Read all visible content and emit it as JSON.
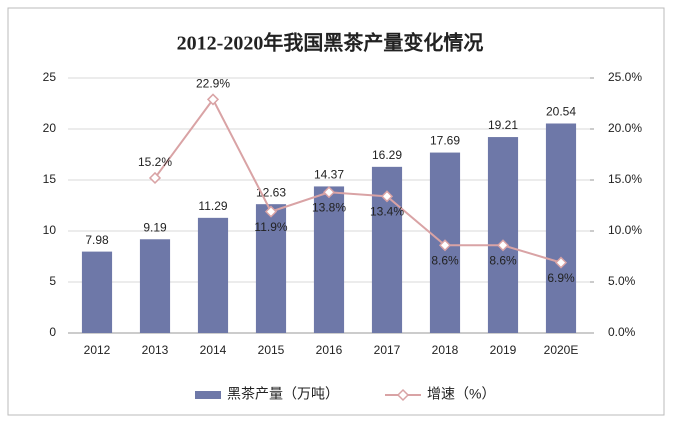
{
  "chart_data": {
    "type": "bar",
    "title": "2012-2020年我国黑茶产量变化情况",
    "categories": [
      "2012",
      "2013",
      "2014",
      "2015",
      "2016",
      "2017",
      "2018",
      "2019",
      "2020E"
    ],
    "series": [
      {
        "name": "黑茶产量（万吨）",
        "type": "bar",
        "color": "#6e78a8",
        "values": [
          7.98,
          9.19,
          11.29,
          12.63,
          14.37,
          16.29,
          17.69,
          19.21,
          20.54
        ]
      },
      {
        "name": "增速（%）",
        "type": "line",
        "axis": "y2",
        "color": "#d9a3a5",
        "values": [
          null,
          15.2,
          22.9,
          11.9,
          13.8,
          13.4,
          8.6,
          8.6,
          6.9
        ],
        "value_labels": [
          null,
          "15.2%",
          "22.9%",
          "11.9%",
          "13.8%",
          "13.4%",
          "8.6%",
          "8.6%",
          "6.9%"
        ]
      }
    ],
    "ylim": [
      0,
      25
    ],
    "yticks": [
      0,
      5,
      10,
      15,
      20,
      25
    ],
    "y2lim": [
      0,
      25
    ],
    "y2ticks": [
      {
        "value": 0,
        "label": "0.0%"
      },
      {
        "value": 5,
        "label": "5.0%"
      },
      {
        "value": 10,
        "label": "10.0%"
      },
      {
        "value": 15,
        "label": "15.0%"
      },
      {
        "value": 20,
        "label": "20.0%"
      },
      {
        "value": 25,
        "label": "25.0%"
      }
    ],
    "grid": true,
    "legend": "bottom"
  }
}
